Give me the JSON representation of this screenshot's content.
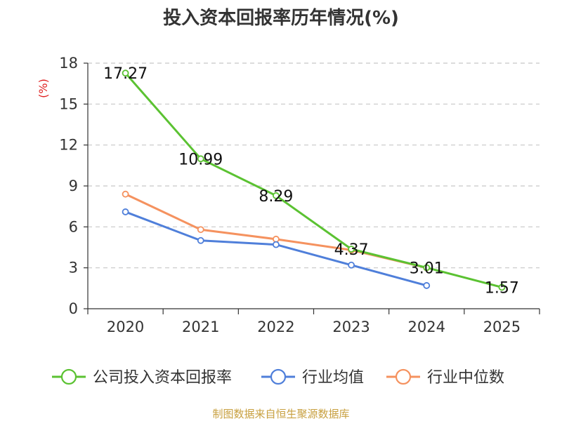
{
  "chart_data": {
    "type": "line",
    "title": "投入资本回报率历年情况(%)",
    "ylabel": "(%)",
    "xlabel": "",
    "categories": [
      "2020",
      "2021",
      "2022",
      "2023",
      "2024",
      "2025"
    ],
    "ylim": [
      0,
      18
    ],
    "yticks": [
      0,
      3,
      6,
      9,
      12,
      15,
      18
    ],
    "grid": "horizontal-dashed",
    "legend_position": "bottom",
    "series": [
      {
        "name": "公司投入资本回报率",
        "color": "#5bc232",
        "values": [
          17.27,
          10.99,
          8.29,
          4.37,
          3.01,
          1.57
        ],
        "labels": [
          "17.27",
          "10.99",
          "8.29",
          "4.37",
          "3.01",
          "1.57"
        ]
      },
      {
        "name": "行业均值",
        "color": "#4f7fda",
        "values": [
          7.1,
          5.0,
          4.7,
          3.2,
          1.7,
          null
        ]
      },
      {
        "name": "行业中位数",
        "color": "#f5925f",
        "values": [
          8.4,
          5.8,
          5.1,
          4.3,
          3.0,
          null
        ]
      }
    ]
  },
  "source": "制图数据来自恒生聚源数据库"
}
